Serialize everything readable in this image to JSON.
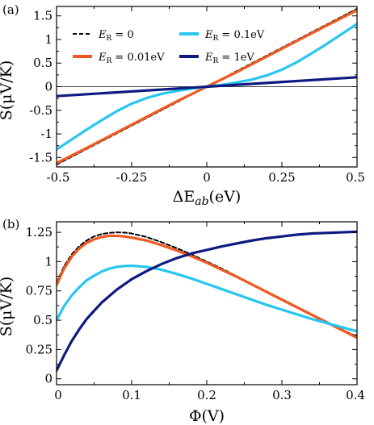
{
  "chart_data": [
    {
      "panel": "(a)",
      "type": "line",
      "xlabel": "ΔE_ab(eV)",
      "ylabel": "S(μV/K)",
      "xlim": [
        -0.5,
        0.5
      ],
      "ylim": [
        -1.7,
        1.7
      ],
      "xticks": [
        -0.5,
        -0.25,
        0,
        0.25,
        0.5
      ],
      "xtick_labels": [
        "-0.5",
        "-0.25",
        "0",
        "0.25",
        "0.5"
      ],
      "yticks": [
        -1.5,
        -1,
        -0.5,
        0,
        0.5,
        1,
        1.5
      ],
      "ytick_labels": [
        "-1.5",
        "-1",
        "-0.5",
        "0",
        "0.5",
        "1",
        "1.5"
      ],
      "legend_placement": "top-left",
      "series": [
        {
          "name": "E_R=0",
          "color": "#000000",
          "dash": true,
          "x": [
            -0.5,
            -0.4,
            -0.3,
            -0.2,
            -0.1,
            0,
            0.1,
            0.2,
            0.3,
            0.4,
            0.5
          ],
          "y": [
            -1.65,
            -1.32,
            -0.99,
            -0.66,
            -0.33,
            0,
            0.33,
            0.66,
            0.99,
            1.32,
            1.65
          ]
        },
        {
          "name": "E_R=0.01eV",
          "color": "#f05a22",
          "dash": false,
          "x": [
            -0.5,
            -0.4,
            -0.3,
            -0.2,
            -0.1,
            0,
            0.1,
            0.2,
            0.3,
            0.4,
            0.5
          ],
          "y": [
            -1.62,
            -1.3,
            -0.97,
            -0.64,
            -0.31,
            0,
            0.31,
            0.64,
            0.97,
            1.3,
            1.62
          ]
        },
        {
          "name": "E_R=0.1eV",
          "color": "#27c6f0",
          "dash": false,
          "x": [
            -0.5,
            -0.45,
            -0.4,
            -0.35,
            -0.3,
            -0.25,
            -0.2,
            -0.15,
            -0.1,
            -0.05,
            0,
            0.05,
            0.1,
            0.15,
            0.2,
            0.25,
            0.3,
            0.35,
            0.4,
            0.45,
            0.5
          ],
          "y": [
            -1.33,
            -1.12,
            -0.91,
            -0.71,
            -0.52,
            -0.36,
            -0.24,
            -0.15,
            -0.09,
            -0.04,
            0,
            0.04,
            0.09,
            0.15,
            0.24,
            0.36,
            0.52,
            0.71,
            0.91,
            1.12,
            1.33
          ]
        },
        {
          "name": "E_R=1eV",
          "color": "#0f1a80",
          "dash": false,
          "x": [
            -0.5,
            -0.25,
            0,
            0.25,
            0.5
          ],
          "y": [
            -0.2,
            -0.1,
            0,
            0.1,
            0.2
          ]
        }
      ]
    },
    {
      "panel": "(b)",
      "type": "line",
      "xlabel": "Φ(V)",
      "ylabel": "S(μV/K)",
      "xlim": [
        0,
        0.4
      ],
      "ylim": [
        -0.05,
        1.34
      ],
      "xticks": [
        0,
        0.1,
        0.2,
        0.3,
        0.4
      ],
      "xtick_labels": [
        "0",
        "0.1",
        "0.2",
        "0.3",
        "0.4"
      ],
      "yticks": [
        0,
        0.25,
        0.5,
        0.75,
        1,
        1.25
      ],
      "ytick_labels": [
        "0",
        "0.25",
        "0.5",
        "0.75",
        "1",
        "1.25"
      ],
      "series": [
        {
          "name": "E_R=0",
          "color": "#000000",
          "dash": true,
          "x": [
            0,
            0.01,
            0.02,
            0.03,
            0.04,
            0.05,
            0.06,
            0.07,
            0.08,
            0.09,
            0.1,
            0.12,
            0.14,
            0.16,
            0.18,
            0.2,
            0.22,
            0.24,
            0.26,
            0.28,
            0.3,
            0.32,
            0.34,
            0.36,
            0.38,
            0.4
          ],
          "y": [
            0.82,
            0.96,
            1.06,
            1.13,
            1.18,
            1.215,
            1.235,
            1.245,
            1.25,
            1.248,
            1.24,
            1.21,
            1.165,
            1.115,
            1.06,
            1.0,
            0.94,
            0.875,
            0.81,
            0.745,
            0.68,
            0.615,
            0.55,
            0.485,
            0.42,
            0.36
          ]
        },
        {
          "name": "E_R=0.01eV",
          "color": "#f05a22",
          "dash": false,
          "x": [
            0,
            0.01,
            0.02,
            0.03,
            0.04,
            0.05,
            0.06,
            0.07,
            0.08,
            0.09,
            0.1,
            0.12,
            0.14,
            0.16,
            0.18,
            0.2,
            0.22,
            0.24,
            0.26,
            0.28,
            0.3,
            0.32,
            0.34,
            0.36,
            0.38,
            0.4
          ],
          "y": [
            0.8,
            0.94,
            1.04,
            1.11,
            1.16,
            1.19,
            1.21,
            1.22,
            1.22,
            1.215,
            1.205,
            1.18,
            1.14,
            1.095,
            1.045,
            0.99,
            0.93,
            0.87,
            0.805,
            0.74,
            0.675,
            0.61,
            0.545,
            0.48,
            0.415,
            0.35
          ]
        },
        {
          "name": "E_R=0.1eV",
          "color": "#27c6f0",
          "dash": false,
          "x": [
            0,
            0.01,
            0.02,
            0.03,
            0.04,
            0.05,
            0.06,
            0.07,
            0.08,
            0.09,
            0.1,
            0.12,
            0.14,
            0.16,
            0.18,
            0.2,
            0.22,
            0.24,
            0.26,
            0.28,
            0.3,
            0.32,
            0.34,
            0.36,
            0.38,
            0.4
          ],
          "y": [
            0.5,
            0.62,
            0.71,
            0.78,
            0.84,
            0.88,
            0.915,
            0.94,
            0.955,
            0.962,
            0.965,
            0.955,
            0.93,
            0.895,
            0.855,
            0.81,
            0.765,
            0.72,
            0.675,
            0.63,
            0.59,
            0.55,
            0.51,
            0.475,
            0.44,
            0.405
          ]
        },
        {
          "name": "E_R=1eV",
          "color": "#0f1a80",
          "dash": false,
          "x": [
            0,
            0.01,
            0.02,
            0.03,
            0.04,
            0.05,
            0.06,
            0.08,
            0.1,
            0.12,
            0.14,
            0.16,
            0.18,
            0.2,
            0.22,
            0.24,
            0.26,
            0.28,
            0.3,
            0.32,
            0.34,
            0.36,
            0.38,
            0.4
          ],
          "y": [
            0.07,
            0.2,
            0.32,
            0.42,
            0.51,
            0.58,
            0.65,
            0.76,
            0.85,
            0.92,
            0.98,
            1.03,
            1.07,
            1.1,
            1.13,
            1.155,
            1.18,
            1.2,
            1.215,
            1.23,
            1.24,
            1.245,
            1.25,
            1.255
          ]
        }
      ]
    }
  ]
}
